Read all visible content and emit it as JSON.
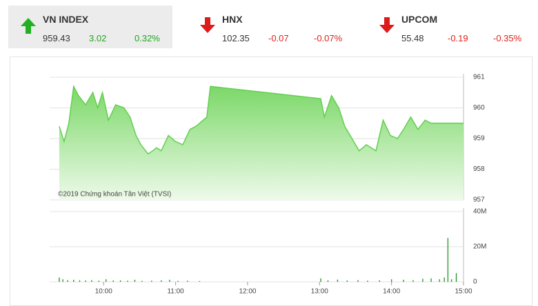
{
  "indices": [
    {
      "name": "VN INDEX",
      "value": "959.43",
      "change": "3.02",
      "percent": "0.32%"
    },
    {
      "name": "HNX",
      "value": "102.35",
      "change": "-0.07",
      "percent": "-0.07%"
    },
    {
      "name": "UPCOM",
      "value": "55.48",
      "change": "-0.19",
      "percent": "-0.35%"
    }
  ],
  "chart_data": [
    {
      "type": "area",
      "annotation": "©2019 Chứng khoán Tân Việt (TVSI)",
      "color": "#62cf4f",
      "x": [
        563,
        567,
        571,
        575,
        579,
        585,
        591,
        595,
        599,
        604,
        610,
        617,
        622,
        627,
        631,
        637,
        641,
        644,
        648,
        654,
        660,
        666,
        672,
        677,
        683,
        686,
        689,
        781,
        784,
        790,
        796,
        801,
        807,
        813,
        819,
        827,
        833,
        839,
        845,
        850,
        856,
        862,
        868,
        873,
        900
      ],
      "values": [
        959.4,
        958.9,
        959.5,
        960.7,
        960.4,
        960.1,
        960.5,
        960.0,
        960.5,
        959.6,
        960.1,
        960.0,
        959.7,
        959.1,
        958.8,
        958.5,
        958.6,
        958.7,
        958.6,
        959.1,
        958.9,
        958.8,
        959.3,
        959.4,
        959.6,
        959.7,
        960.7,
        960.3,
        959.7,
        960.4,
        960.0,
        959.4,
        959.0,
        958.6,
        958.8,
        958.6,
        959.6,
        959.1,
        959.0,
        959.3,
        959.7,
        959.3,
        959.6,
        959.5,
        959.5
      ],
      "xlim": [
        555,
        900
      ],
      "ylim": [
        957,
        961
      ],
      "yticks": [
        957,
        958,
        959,
        960,
        961
      ],
      "grid": true
    },
    {
      "type": "bar",
      "color": "#2e9a2e",
      "x": [
        563,
        566,
        570,
        575,
        580,
        585,
        590,
        596,
        602,
        608,
        614,
        620,
        626,
        632,
        640,
        648,
        655,
        662,
        670,
        680,
        781,
        787,
        795,
        803,
        812,
        820,
        830,
        840,
        850,
        858,
        866,
        873,
        880,
        884,
        887,
        890,
        894
      ],
      "values": [
        2500000,
        1500000,
        1000000,
        1200000,
        900000,
        800000,
        1000000,
        700000,
        1500000,
        800000,
        900000,
        700000,
        1200000,
        600000,
        700000,
        900000,
        1200000,
        600000,
        700000,
        500000,
        2000000,
        900000,
        1300000,
        800000,
        1000000,
        700000,
        900000,
        1500000,
        1200000,
        1000000,
        1800000,
        2000000,
        1500000,
        2500000,
        25000000,
        1500000,
        5000000
      ],
      "xlim": [
        555,
        900
      ],
      "xticks": [
        {
          "value": 600,
          "label": "10:00"
        },
        {
          "value": 660,
          "label": "11:00"
        },
        {
          "value": 720,
          "label": "12:00"
        },
        {
          "value": 780,
          "label": "13:00"
        },
        {
          "value": 840,
          "label": "14:00"
        },
        {
          "value": 900,
          "label": "15:00"
        }
      ],
      "ylim": [
        0,
        40000000
      ],
      "yticks": [
        {
          "value": 0,
          "label": "0"
        },
        {
          "value": 20000000,
          "label": "20M"
        },
        {
          "value": 40000000,
          "label": "40M"
        }
      ],
      "grid": true
    }
  ]
}
